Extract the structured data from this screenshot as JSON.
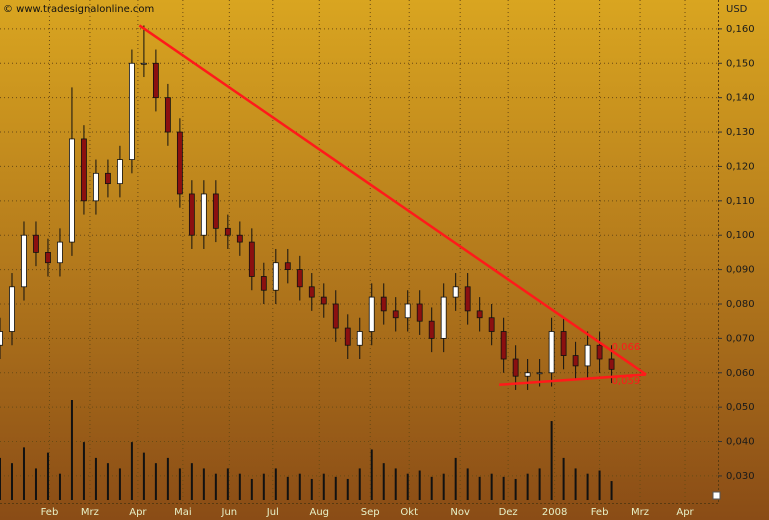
{
  "chart_data": {
    "type": "candlestick",
    "source": "© www.tradesignalonline.com",
    "currency": "USD",
    "x": [
      0,
      8,
      16,
      24,
      32,
      40,
      48,
      56,
      64,
      72,
      80,
      88,
      96,
      104,
      112,
      120,
      128,
      136,
      144,
      152,
      160,
      168,
      176,
      184,
      192,
      200,
      208,
      216,
      224,
      232,
      240,
      248,
      256,
      264,
      272,
      280,
      288,
      296,
      304,
      312,
      320,
      328,
      336,
      344,
      352,
      360,
      368,
      376,
      384,
      392,
      400,
      408
    ],
    "open": [
      0.068,
      0.072,
      0.085,
      0.1,
      0.095,
      0.092,
      0.098,
      0.128,
      0.11,
      0.118,
      0.115,
      0.122,
      0.15,
      0.15,
      0.14,
      0.13,
      0.112,
      0.1,
      0.112,
      0.102,
      0.1,
      0.098,
      0.088,
      0.084,
      0.092,
      0.09,
      0.085,
      0.082,
      0.08,
      0.073,
      0.068,
      0.072,
      0.082,
      0.078,
      0.076,
      0.08,
      0.075,
      0.07,
      0.082,
      0.085,
      0.078,
      0.076,
      0.072,
      0.064,
      0.059,
      0.06,
      0.06,
      0.072,
      0.065,
      0.062,
      0.068,
      0.064
    ],
    "high": [
      0.076,
      0.089,
      0.104,
      0.104,
      0.099,
      0.102,
      0.143,
      0.132,
      0.122,
      0.122,
      0.126,
      0.154,
      0.161,
      0.154,
      0.144,
      0.134,
      0.116,
      0.116,
      0.116,
      0.106,
      0.104,
      0.102,
      0.092,
      0.096,
      0.096,
      0.094,
      0.089,
      0.086,
      0.084,
      0.077,
      0.076,
      0.086,
      0.086,
      0.082,
      0.084,
      0.084,
      0.079,
      0.086,
      0.089,
      0.089,
      0.082,
      0.08,
      0.076,
      0.068,
      0.064,
      0.064,
      0.076,
      0.076,
      0.069,
      0.072,
      0.072,
      0.068
    ],
    "low": [
      0.064,
      0.068,
      0.081,
      0.091,
      0.088,
      0.088,
      0.094,
      0.106,
      0.106,
      0.111,
      0.111,
      0.118,
      0.146,
      0.136,
      0.126,
      0.108,
      0.096,
      0.096,
      0.098,
      0.096,
      0.094,
      0.084,
      0.08,
      0.08,
      0.086,
      0.081,
      0.078,
      0.076,
      0.069,
      0.064,
      0.064,
      0.068,
      0.074,
      0.072,
      0.072,
      0.071,
      0.066,
      0.066,
      0.078,
      0.074,
      0.072,
      0.068,
      0.06,
      0.055,
      0.055,
      0.056,
      0.056,
      0.061,
      0.058,
      0.058,
      0.06,
      0.057
    ],
    "close": [
      0.072,
      0.085,
      0.1,
      0.095,
      0.092,
      0.098,
      0.128,
      0.11,
      0.118,
      0.115,
      0.122,
      0.15,
      0.15,
      0.14,
      0.13,
      0.112,
      0.1,
      0.112,
      0.102,
      0.1,
      0.098,
      0.088,
      0.084,
      0.092,
      0.09,
      0.085,
      0.082,
      0.08,
      0.073,
      0.068,
      0.072,
      0.082,
      0.078,
      0.076,
      0.08,
      0.075,
      0.07,
      0.082,
      0.085,
      0.078,
      0.076,
      0.072,
      0.064,
      0.059,
      0.06,
      0.06,
      0.072,
      0.065,
      0.062,
      0.068,
      0.064,
      0.061
    ],
    "volume": [
      40,
      35,
      50,
      30,
      45,
      25,
      95,
      55,
      40,
      35,
      30,
      55,
      45,
      35,
      40,
      30,
      35,
      30,
      25,
      30,
      25,
      20,
      25,
      30,
      22,
      25,
      20,
      25,
      22,
      20,
      30,
      48,
      35,
      30,
      25,
      28,
      22,
      25,
      40,
      30,
      22,
      25,
      22,
      20,
      25,
      30,
      75,
      40,
      30,
      25,
      28,
      18
    ],
    "up_color": "#ffffff",
    "down_color": "#8b1010",
    "volume_color": "#111111",
    "xlim": [
      0,
      479
    ],
    "xticks": [
      {
        "value": 33,
        "label": "Feb"
      },
      {
        "value": 60,
        "label": "Mrz"
      },
      {
        "value": 92,
        "label": "Apr"
      },
      {
        "value": 122,
        "label": "Mai"
      },
      {
        "value": 153,
        "label": "Jun"
      },
      {
        "value": 182,
        "label": "Jul"
      },
      {
        "value": 213,
        "label": "Aug"
      },
      {
        "value": 247,
        "label": "Sep"
      },
      {
        "value": 273,
        "label": "Okt"
      },
      {
        "value": 307,
        "label": "Nov"
      },
      {
        "value": 339,
        "label": "Dez"
      },
      {
        "value": 370,
        "label": "2008"
      },
      {
        "value": 400,
        "label": "Feb"
      },
      {
        "value": 427,
        "label": "Mrz"
      },
      {
        "value": 457,
        "label": "Apr"
      }
    ],
    "ylim": [
      0.023,
      0.1684
    ],
    "yticks": [
      {
        "value": 0.03,
        "label": "0,030"
      },
      {
        "value": 0.04,
        "label": "0,040"
      },
      {
        "value": 0.05,
        "label": "0,050"
      },
      {
        "value": 0.06,
        "label": "0,060"
      },
      {
        "value": 0.07,
        "label": "0,070"
      },
      {
        "value": 0.08,
        "label": "0,080"
      },
      {
        "value": 0.09,
        "label": "0,090"
      },
      {
        "value": 0.1,
        "label": "0,100"
      },
      {
        "value": 0.11,
        "label": "0,110"
      },
      {
        "value": 0.12,
        "label": "0,120"
      },
      {
        "value": 0.13,
        "label": "0,130"
      },
      {
        "value": 0.14,
        "label": "0,140"
      },
      {
        "value": 0.15,
        "label": "0,150"
      },
      {
        "value": 0.16,
        "label": "0,160"
      }
    ],
    "grid": true,
    "trendlines": [
      {
        "x": [
          93,
          431
        ],
        "y": [
          0.161,
          0.0595
        ],
        "color": "#ff1a1a"
      },
      {
        "x": [
          333,
          431
        ],
        "y": [
          0.0565,
          0.0595
        ],
        "color": "#ff1a1a"
      }
    ],
    "levels": [
      {
        "value": 0.066,
        "label": "0,066"
      },
      {
        "value": 0.059,
        "label": "0,059"
      }
    ],
    "level_color": "#ff1a1a"
  }
}
